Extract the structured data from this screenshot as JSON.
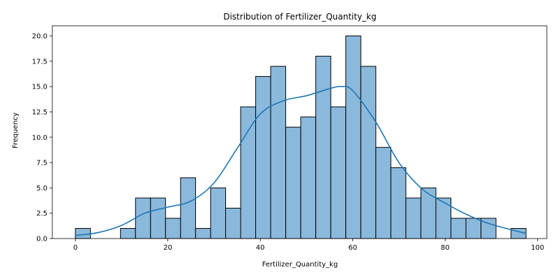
{
  "chart_data": {
    "type": "bar",
    "title": "Distribution of Fertilizer_Quantity_kg",
    "xlabel": "Fertilizer_Quantity_kg",
    "ylabel": "Frequency",
    "xlim": [
      -5,
      102
    ],
    "ylim": [
      0,
      21
    ],
    "xticks": [
      0,
      20,
      40,
      60,
      80,
      100
    ],
    "yticks": [
      0.0,
      2.5,
      5.0,
      7.5,
      10.0,
      12.5,
      15.0,
      17.5,
      20.0
    ],
    "bin_start": 0,
    "bin_width": 3.25,
    "counts": [
      1,
      0,
      0,
      1,
      4,
      4,
      2,
      6,
      1,
      5,
      3,
      13,
      16,
      17,
      11,
      12,
      18,
      13,
      20,
      17,
      9,
      7,
      4,
      5,
      4,
      2,
      2,
      2,
      0,
      1
    ],
    "kde": {
      "x": [
        0,
        5,
        10,
        15,
        20,
        25,
        30,
        35,
        40,
        45,
        50,
        55,
        57.5,
        60,
        65,
        70,
        75,
        80,
        85,
        90,
        97.5
      ],
      "y": [
        0.3,
        0.6,
        1.3,
        2.5,
        3.1,
        3.7,
        5.5,
        8.9,
        12.3,
        13.6,
        14.1,
        14.8,
        15.0,
        14.6,
        11.5,
        7.5,
        4.9,
        3.5,
        2.3,
        1.4,
        0.5
      ]
    },
    "bar_color": "#8ab9dc",
    "bar_edge": "#000000",
    "line_color": "#1f77b4",
    "grid": false,
    "legend": "none"
  }
}
